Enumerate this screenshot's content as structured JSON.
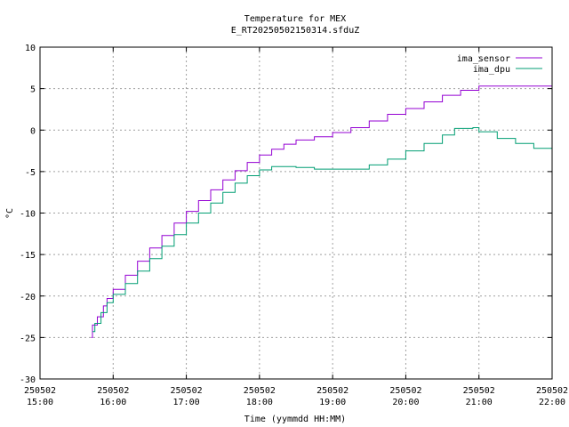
{
  "chart_data": {
    "type": "line",
    "title": "Temperature for MEX",
    "subtitle": "E_RT20250502150314.sfduZ",
    "xlabel": "Time (yymmdd HH:MM)",
    "ylabel": "°C",
    "xlim": [
      "15:00",
      "22:00"
    ],
    "ylim": [
      -30,
      10
    ],
    "grid": true,
    "legend_position": "top-right",
    "y_ticks": [
      "-30",
      "-25",
      "-20",
      "-15",
      "-10",
      "-5",
      "0",
      "5",
      "10"
    ],
    "x_ticks": [
      {
        "date": "250502",
        "time": "15:00"
      },
      {
        "date": "250502",
        "time": "16:00"
      },
      {
        "date": "250502",
        "time": "17:00"
      },
      {
        "date": "250502",
        "time": "18:00"
      },
      {
        "date": "250502",
        "time": "19:00"
      },
      {
        "date": "250502",
        "time": "20:00"
      },
      {
        "date": "250502",
        "time": "21:00"
      },
      {
        "date": "250502",
        "time": "22:00"
      }
    ],
    "series": [
      {
        "name": "ima_sensor",
        "color": "#9400d3",
        "points": [
          [
            "15:42",
            -25.0
          ],
          [
            "15:43",
            -23.5
          ],
          [
            "15:47",
            -22.5
          ],
          [
            "15:52",
            -21.2
          ],
          [
            "15:55",
            -20.3
          ],
          [
            "16:00",
            -19.2
          ],
          [
            "16:10",
            -17.5
          ],
          [
            "16:20",
            -15.8
          ],
          [
            "16:30",
            -14.2
          ],
          [
            "16:40",
            -12.7
          ],
          [
            "16:50",
            -11.2
          ],
          [
            "17:00",
            -9.8
          ],
          [
            "17:10",
            -8.5
          ],
          [
            "17:20",
            -7.2
          ],
          [
            "17:30",
            -6.0
          ],
          [
            "17:40",
            -4.9
          ],
          [
            "17:50",
            -3.9
          ],
          [
            "18:00",
            -3.0
          ],
          [
            "18:10",
            -2.3
          ],
          [
            "18:20",
            -1.7
          ],
          [
            "18:30",
            -1.2
          ],
          [
            "18:45",
            -0.8
          ],
          [
            "19:00",
            -0.3
          ],
          [
            "19:15",
            0.3
          ],
          [
            "19:30",
            1.1
          ],
          [
            "19:45",
            1.9
          ],
          [
            "20:00",
            2.6
          ],
          [
            "20:15",
            3.4
          ],
          [
            "20:30",
            4.2
          ],
          [
            "20:45",
            4.8
          ],
          [
            "21:00",
            5.3
          ],
          [
            "21:30",
            5.3
          ],
          [
            "21:58",
            5.3
          ],
          [
            "22:00",
            4.9
          ]
        ]
      },
      {
        "name": "ima_dpu",
        "color": "#009e73",
        "points": [
          [
            "15:43",
            -24.3
          ],
          [
            "15:45",
            -23.3
          ],
          [
            "15:50",
            -22.0
          ],
          [
            "15:55",
            -20.8
          ],
          [
            "16:00",
            -19.8
          ],
          [
            "16:10",
            -18.5
          ],
          [
            "16:20",
            -17.0
          ],
          [
            "16:30",
            -15.5
          ],
          [
            "16:40",
            -14.0
          ],
          [
            "16:50",
            -12.6
          ],
          [
            "17:00",
            -11.2
          ],
          [
            "17:10",
            -10.0
          ],
          [
            "17:20",
            -8.8
          ],
          [
            "17:30",
            -7.5
          ],
          [
            "17:40",
            -6.4
          ],
          [
            "17:50",
            -5.5
          ],
          [
            "18:00",
            -4.8
          ],
          [
            "18:10",
            -4.4
          ],
          [
            "18:20",
            -4.4
          ],
          [
            "18:30",
            -4.5
          ],
          [
            "18:45",
            -4.7
          ],
          [
            "19:00",
            -4.7
          ],
          [
            "19:15",
            -4.7
          ],
          [
            "19:30",
            -4.2
          ],
          [
            "19:45",
            -3.5
          ],
          [
            "20:00",
            -2.5
          ],
          [
            "20:15",
            -1.6
          ],
          [
            "20:30",
            -0.6
          ],
          [
            "20:40",
            0.2
          ],
          [
            "20:55",
            0.3
          ],
          [
            "21:00",
            -0.2
          ],
          [
            "21:15",
            -1.0
          ],
          [
            "21:30",
            -1.6
          ],
          [
            "21:45",
            -2.2
          ],
          [
            "22:00",
            -2.4
          ]
        ]
      }
    ]
  }
}
